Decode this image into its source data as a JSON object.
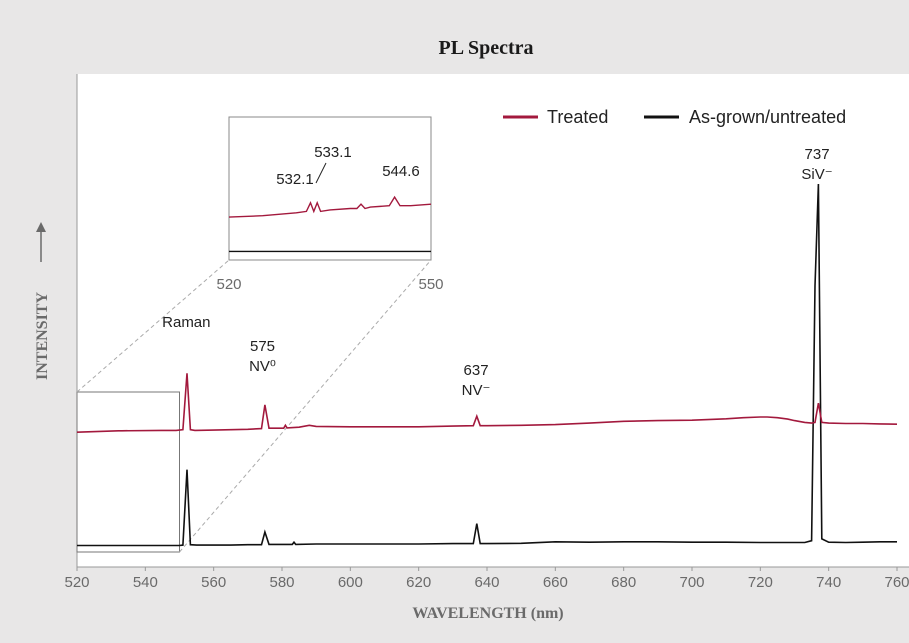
{
  "chart_data": {
    "type": "line",
    "title": "PL Spectra",
    "xlabel": "WAVELENGTH (nm)",
    "ylabel": "INTENSITY",
    "xlim": [
      520,
      760
    ],
    "xticks": [
      520,
      540,
      560,
      580,
      600,
      620,
      640,
      660,
      680,
      700,
      720,
      740,
      760
    ],
    "grid": false,
    "legend_position": "top-right",
    "series": [
      {
        "name": "Treated",
        "color": "#a3193d",
        "x": [
          520,
          532.1,
          533.1,
          544.6,
          549,
          551,
          552.2,
          553.2,
          554.5,
          560,
          565,
          570,
          574,
          575,
          576.2,
          578,
          580.5,
          581,
          581.5,
          585,
          588,
          590,
          600,
          610,
          620,
          630,
          636,
          637,
          638,
          640,
          650,
          660,
          670,
          680,
          690,
          700,
          710,
          715,
          720,
          722,
          725,
          728,
          730,
          733,
          735,
          736,
          737,
          738,
          740,
          745,
          750,
          755,
          760
        ],
        "y": [
          0.318,
          0.322,
          0.322,
          0.323,
          0.323,
          0.325,
          0.48,
          0.325,
          0.323,
          0.324,
          0.325,
          0.326,
          0.328,
          0.393,
          0.329,
          0.329,
          0.329,
          0.337,
          0.33,
          0.332,
          0.337,
          0.334,
          0.333,
          0.333,
          0.333,
          0.335,
          0.336,
          0.362,
          0.336,
          0.336,
          0.337,
          0.339,
          0.343,
          0.348,
          0.35,
          0.351,
          0.355,
          0.358,
          0.36,
          0.36,
          0.358,
          0.354,
          0.35,
          0.345,
          0.343,
          0.345,
          0.398,
          0.345,
          0.343,
          0.342,
          0.342,
          0.341,
          0.34
        ]
      },
      {
        "name": "As-grown/untreated",
        "color": "#111111",
        "x": [
          520,
          530,
          540,
          545,
          550,
          551,
          552.2,
          553.2,
          555,
          560,
          565,
          570,
          574,
          575,
          576.2,
          580,
          583,
          583.5,
          584,
          590,
          600,
          610,
          620,
          630,
          636,
          637,
          638,
          640,
          650,
          660,
          670,
          680,
          690,
          700,
          710,
          720,
          730,
          733,
          735,
          736,
          737,
          738,
          740,
          745,
          750,
          755,
          760
        ],
        "y": [
          0.007,
          0.007,
          0.007,
          0.007,
          0.007,
          0.008,
          0.215,
          0.009,
          0.008,
          0.008,
          0.008,
          0.009,
          0.009,
          0.044,
          0.01,
          0.01,
          0.01,
          0.016,
          0.01,
          0.011,
          0.011,
          0.011,
          0.011,
          0.012,
          0.012,
          0.067,
          0.012,
          0.012,
          0.013,
          0.017,
          0.016,
          0.017,
          0.017,
          0.016,
          0.016,
          0.015,
          0.015,
          0.015,
          0.02,
          0.72,
          1.0,
          0.025,
          0.016,
          0.015,
          0.016,
          0.017,
          0.017
        ]
      }
    ],
    "annotations": [
      {
        "text": "Raman",
        "x": 552.2
      },
      {
        "text": "575",
        "sub": "NV⁰",
        "x": 575
      },
      {
        "text": "637",
        "sub": "NV⁻",
        "x": 637
      },
      {
        "text": "737",
        "sub": "SiV⁻",
        "x": 737
      }
    ],
    "inset": {
      "xlim": [
        520,
        550
      ],
      "xticks": [
        520,
        550
      ],
      "source_box_xlim": [
        520,
        550
      ],
      "labels": [
        "532.1",
        "533.1",
        "544.6"
      ],
      "treated": {
        "x": [
          520,
          525,
          530,
          531.5,
          532.1,
          532.6,
          533.1,
          533.6,
          535,
          538,
          539,
          539.6,
          540.2,
          541,
          543.8,
          544.6,
          545.4,
          547,
          550
        ],
        "y": [
          0.3,
          0.31,
          0.33,
          0.34,
          0.4,
          0.34,
          0.4,
          0.34,
          0.35,
          0.36,
          0.36,
          0.39,
          0.36,
          0.37,
          0.38,
          0.44,
          0.38,
          0.38,
          0.39
        ]
      },
      "untreated": {
        "x": [
          520,
          550
        ],
        "y": [
          0.06,
          0.06
        ]
      }
    }
  }
}
